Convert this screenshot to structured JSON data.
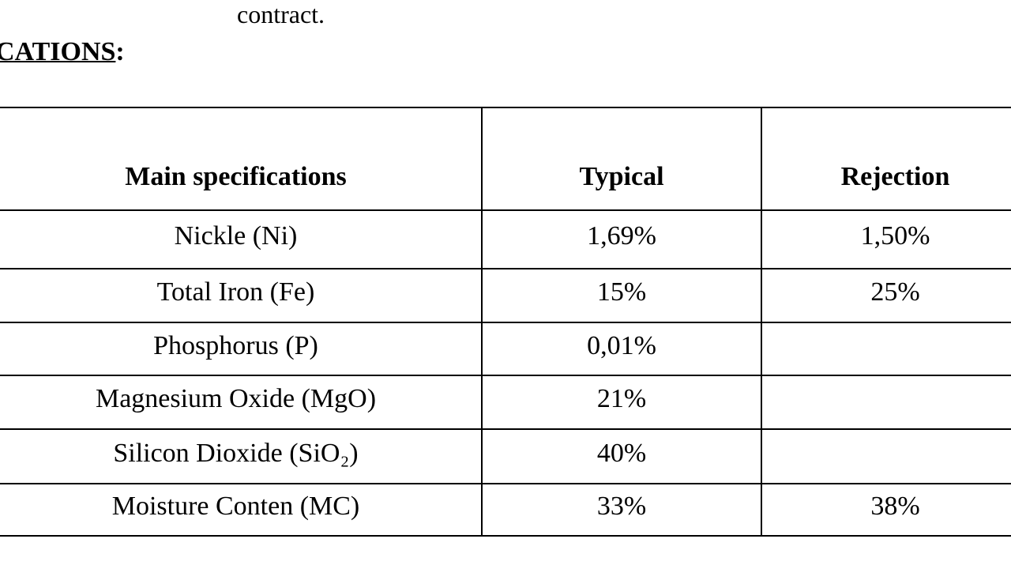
{
  "intro": {
    "text": "contract."
  },
  "heading": {
    "text": "CATIONS",
    "suffix": ":"
  },
  "table": {
    "header": [
      "Main specifications",
      "Typical",
      "Rejection"
    ],
    "rows": [
      [
        "Nickle (Ni)",
        "1,69%",
        "1,50%"
      ],
      [
        "Total Iron (Fe)",
        "15%",
        "25%"
      ],
      [
        "Phosphorus (P)",
        "0,01%",
        null
      ],
      [
        "Magnesium Oxide (MgO)",
        "21%",
        null
      ],
      [
        "Silicon Dioxide (SiO₂)",
        "40%",
        null
      ],
      [
        "Moisture Conten (MC)",
        "33%",
        "38%"
      ]
    ]
  }
}
